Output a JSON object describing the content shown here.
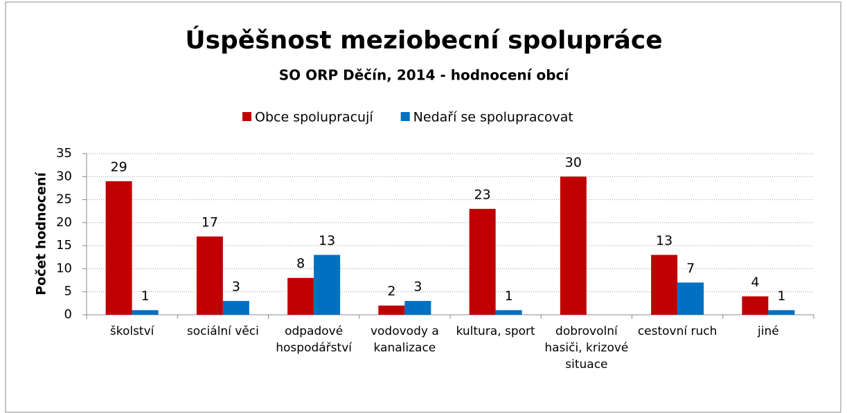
{
  "chart_data": {
    "type": "bar",
    "title": "Úspěšnost meziobecní spolupráce",
    "subtitle": "SO ORP Děčín, 2014 - hodnocení obcí",
    "ylabel": "Počet hodnocení",
    "categories": [
      "školství",
      "sociální věci",
      "odpadové hospodářství",
      "vodovody a kanalizace",
      "kultura, sport",
      "dobrovolní hasiči, krizové situace",
      "cestovní ruch",
      "jiné"
    ],
    "series": [
      {
        "name": "Obce spolupracují",
        "color": "#c00000",
        "values": [
          29,
          17,
          8,
          2,
          23,
          30,
          13,
          4
        ]
      },
      {
        "name": "Nedaří se spolupracovat",
        "color": "#0070c0",
        "values": [
          1,
          3,
          13,
          3,
          1,
          null,
          7,
          1
        ]
      }
    ],
    "ylim": [
      0,
      35
    ],
    "yticks": [
      0,
      5,
      10,
      15,
      20,
      25,
      30,
      35
    ],
    "grid": true,
    "legend": "top"
  }
}
